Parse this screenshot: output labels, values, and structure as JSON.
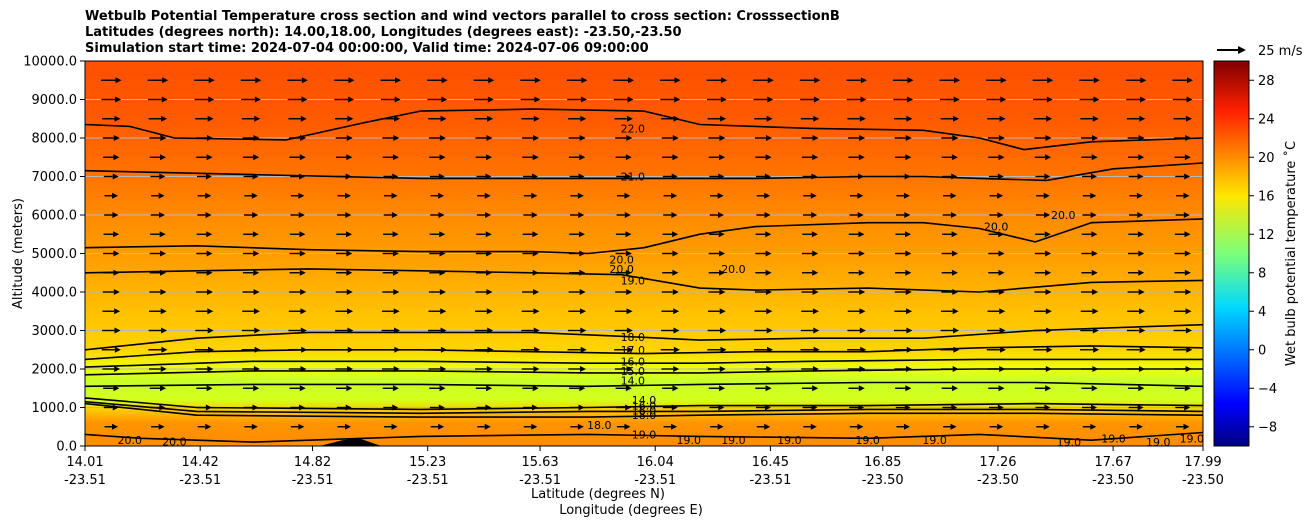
{
  "chart_data": {
    "type": "heatmap",
    "title_lines": [
      "Wetbulb Potential Temperature cross section and wind vectors parallel to cross section: CrosssectionB",
      "Latitudes (degrees north): 14.00,18.00, Longitudes (degrees east): -23.50,-23.50",
      "Simulation start time: 2024-07-04 00:00:00, Valid time: 2024-07-06 09:00:00"
    ],
    "xlabel_lines": [
      "Latitude (degrees N)",
      "Longitude (degrees E)"
    ],
    "ylabel": "Altitude (meters)",
    "ylim": [
      0,
      10000
    ],
    "y_ticks": [
      "0.0",
      "1000.0",
      "2000.0",
      "3000.0",
      "4000.0",
      "5000.0",
      "6000.0",
      "7000.0",
      "8000.0",
      "9000.0",
      "10000.0"
    ],
    "x_ticks_lat": [
      "14.01",
      "14.42",
      "14.82",
      "15.23",
      "15.63",
      "16.04",
      "16.45",
      "16.85",
      "17.26",
      "17.67",
      "17.99"
    ],
    "x_ticks_lon": [
      "-23.51",
      "-23.51",
      "-23.51",
      "-23.51",
      "-23.51",
      "-23.51",
      "-23.51",
      "-23.50",
      "-23.50",
      "-23.50",
      "-23.50"
    ],
    "colorbar": {
      "label": "Wet bulb potential temperature ˚C",
      "range": [
        -10,
        30
      ],
      "ticks": [
        "−8",
        "−4",
        "0",
        "4",
        "8",
        "12",
        "16",
        "20",
        "24",
        "28"
      ]
    },
    "quiver_key": {
      "label": "25 m/s"
    },
    "filled_field": [
      {
        "altitude": 0,
        "temperature": 19.5
      },
      {
        "altitude": 600,
        "temperature": 19.0
      },
      {
        "altitude": 900,
        "temperature": 16.0
      },
      {
        "altitude": 1200,
        "temperature": 14.2
      },
      {
        "altitude": 1700,
        "temperature": 14.0
      },
      {
        "altitude": 2000,
        "temperature": 15.5
      },
      {
        "altitude": 2500,
        "temperature": 17.5
      },
      {
        "altitude": 3500,
        "temperature": 18.5
      },
      {
        "altitude": 4700,
        "temperature": 19.5
      },
      {
        "altitude": 6000,
        "temperature": 20.3
      },
      {
        "altitude": 7000,
        "temperature": 21.0
      },
      {
        "altitude": 8500,
        "temperature": 22.5
      },
      {
        "altitude": 10000,
        "temperature": 23.0
      }
    ],
    "contours": [
      {
        "level": "22.0",
        "points": [
          [
            0,
            8350
          ],
          [
            0.04,
            8300
          ],
          [
            0.08,
            8000
          ],
          [
            0.18,
            7950
          ],
          [
            0.25,
            8400
          ],
          [
            0.3,
            8700
          ],
          [
            0.4,
            8750
          ],
          [
            0.5,
            8700
          ],
          [
            0.55,
            8350
          ],
          [
            0.65,
            8250
          ],
          [
            0.75,
            8200
          ],
          [
            0.8,
            8000
          ],
          [
            0.84,
            7700
          ],
          [
            0.9,
            7900
          ],
          [
            1,
            8000
          ]
        ]
      },
      {
        "level": "21.0",
        "points": [
          [
            0,
            7150
          ],
          [
            0.15,
            7050
          ],
          [
            0.3,
            6950
          ],
          [
            0.45,
            6950
          ],
          [
            0.55,
            6950
          ],
          [
            0.6,
            6950
          ],
          [
            0.7,
            7000
          ],
          [
            0.75,
            7000
          ],
          [
            0.8,
            6950
          ],
          [
            0.86,
            6900
          ],
          [
            0.92,
            7200
          ],
          [
            1,
            7350
          ]
        ]
      },
      {
        "level": "20.0",
        "points": [
          [
            0,
            5150
          ],
          [
            0.1,
            5200
          ],
          [
            0.2,
            5100
          ],
          [
            0.3,
            5050
          ],
          [
            0.4,
            5050
          ],
          [
            0.45,
            5000
          ],
          [
            0.5,
            5150
          ],
          [
            0.55,
            5500
          ],
          [
            0.6,
            5700
          ],
          [
            0.7,
            5800
          ],
          [
            0.75,
            5800
          ],
          [
            0.8,
            5650
          ],
          [
            0.85,
            5300
          ],
          [
            0.9,
            5800
          ],
          [
            1,
            5900
          ]
        ]
      },
      {
        "level": "19.0",
        "points": [
          [
            0,
            4500
          ],
          [
            0.1,
            4550
          ],
          [
            0.2,
            4600
          ],
          [
            0.3,
            4550
          ],
          [
            0.4,
            4500
          ],
          [
            0.48,
            4450
          ],
          [
            0.55,
            4100
          ],
          [
            0.6,
            4050
          ],
          [
            0.7,
            4100
          ],
          [
            0.8,
            4000
          ],
          [
            0.9,
            4250
          ],
          [
            1,
            4300
          ]
        ]
      },
      {
        "level": "18.0",
        "points": [
          [
            0,
            2500
          ],
          [
            0.1,
            2800
          ],
          [
            0.2,
            2950
          ],
          [
            0.3,
            2950
          ],
          [
            0.4,
            2950
          ],
          [
            0.48,
            2850
          ],
          [
            0.55,
            2750
          ],
          [
            0.65,
            2800
          ],
          [
            0.75,
            2800
          ],
          [
            0.85,
            3000
          ],
          [
            0.95,
            3100
          ],
          [
            1,
            3150
          ]
        ]
      },
      {
        "level": "17.0",
        "points": [
          [
            0,
            2250
          ],
          [
            0.1,
            2450
          ],
          [
            0.2,
            2500
          ],
          [
            0.3,
            2500
          ],
          [
            0.4,
            2450
          ],
          [
            0.5,
            2400
          ],
          [
            0.6,
            2450
          ],
          [
            0.7,
            2450
          ],
          [
            0.8,
            2550
          ],
          [
            0.9,
            2600
          ],
          [
            1,
            2550
          ]
        ]
      },
      {
        "level": "16.0",
        "points": [
          [
            0,
            2050
          ],
          [
            0.15,
            2200
          ],
          [
            0.3,
            2200
          ],
          [
            0.45,
            2150
          ],
          [
            0.55,
            2150
          ],
          [
            0.65,
            2200
          ],
          [
            0.8,
            2250
          ],
          [
            1,
            2250
          ]
        ]
      },
      {
        "level": "15.0",
        "points": [
          [
            0,
            1850
          ],
          [
            0.15,
            1950
          ],
          [
            0.3,
            1950
          ],
          [
            0.45,
            1900
          ],
          [
            0.55,
            1900
          ],
          [
            0.65,
            1950
          ],
          [
            0.8,
            2000
          ],
          [
            1,
            2000
          ]
        ]
      },
      {
        "level": "14.0",
        "points": [
          [
            0,
            1550
          ],
          [
            0.15,
            1600
          ],
          [
            0.3,
            1600
          ],
          [
            0.45,
            1550
          ],
          [
            0.55,
            1600
          ],
          [
            0.7,
            1650
          ],
          [
            0.85,
            1650
          ],
          [
            1,
            1550
          ]
        ]
      },
      {
        "level": "14.0",
        "points": [
          [
            0,
            1250
          ],
          [
            0.1,
            1000
          ],
          [
            0.3,
            950
          ],
          [
            0.45,
            1000
          ],
          [
            0.55,
            1050
          ],
          [
            0.7,
            1050
          ],
          [
            0.85,
            1100
          ],
          [
            1,
            1050
          ]
        ]
      },
      {
        "level": "16.0",
        "points": [
          [
            0,
            1150
          ],
          [
            0.1,
            900
          ],
          [
            0.3,
            850
          ],
          [
            0.45,
            900
          ],
          [
            0.55,
            900
          ],
          [
            0.7,
            950
          ],
          [
            0.85,
            950
          ],
          [
            1,
            900
          ]
        ]
      },
      {
        "level": "18.0",
        "points": [
          [
            0,
            1100
          ],
          [
            0.1,
            800
          ],
          [
            0.3,
            750
          ],
          [
            0.45,
            750
          ],
          [
            0.55,
            800
          ],
          [
            0.7,
            850
          ],
          [
            0.85,
            850
          ],
          [
            1,
            800
          ]
        ]
      },
      {
        "level": "19.0",
        "points": [
          [
            0,
            300
          ],
          [
            0.05,
            200
          ],
          [
            0.15,
            100
          ],
          [
            0.3,
            250
          ],
          [
            0.45,
            300
          ],
          [
            0.55,
            250
          ],
          [
            0.7,
            200
          ],
          [
            0.8,
            300
          ],
          [
            0.9,
            150
          ],
          [
            1,
            350
          ]
        ]
      }
    ],
    "contour_labels": [
      {
        "text": "22.0",
        "x": 0.49,
        "alt": 8250
      },
      {
        "text": "21.0",
        "x": 0.49,
        "alt": 7000
      },
      {
        "text": "20.0",
        "x": 0.48,
        "alt": 4850
      },
      {
        "text": "20.0",
        "x": 0.48,
        "alt": 4600
      },
      {
        "text": "19.0",
        "x": 0.49,
        "alt": 4300
      },
      {
        "text": "20.0",
        "x": 0.58,
        "alt": 4600
      },
      {
        "text": "20.0",
        "x": 0.815,
        "alt": 5700
      },
      {
        "text": "20.0",
        "x": 0.875,
        "alt": 6000
      },
      {
        "text": "18.0",
        "x": 0.49,
        "alt": 2830
      },
      {
        "text": "17.0",
        "x": 0.49,
        "alt": 2500
      },
      {
        "text": "16.0",
        "x": 0.49,
        "alt": 2200
      },
      {
        "text": "15.0",
        "x": 0.49,
        "alt": 1950
      },
      {
        "text": "14.0",
        "x": 0.49,
        "alt": 1700
      },
      {
        "text": "14.0",
        "x": 0.5,
        "alt": 1200
      },
      {
        "text": "16.0",
        "x": 0.5,
        "alt": 1050
      },
      {
        "text": "16.0",
        "x": 0.5,
        "alt": 920
      },
      {
        "text": "18.0",
        "x": 0.5,
        "alt": 800
      },
      {
        "text": "18.0",
        "x": 0.46,
        "alt": 550
      },
      {
        "text": "19.0",
        "x": 0.5,
        "alt": 300
      },
      {
        "text": "20.0",
        "x": 0.04,
        "alt": 150
      },
      {
        "text": "20.0",
        "x": 0.08,
        "alt": 120
      },
      {
        "text": "19.0",
        "x": 0.54,
        "alt": 150
      },
      {
        "text": "19.0",
        "x": 0.58,
        "alt": 150
      },
      {
        "text": "19.0",
        "x": 0.63,
        "alt": 150
      },
      {
        "text": "19.0",
        "x": 0.7,
        "alt": 150
      },
      {
        "text": "19.0",
        "x": 0.76,
        "alt": 150
      },
      {
        "text": "19.0",
        "x": 0.88,
        "alt": 100
      },
      {
        "text": "19.0",
        "x": 0.92,
        "alt": 200
      },
      {
        "text": "19.0",
        "x": 0.96,
        "alt": 100
      },
      {
        "text": "19.0",
        "x": 0.99,
        "alt": 200
      }
    ],
    "terrain": [
      [
        0.21,
        0
      ],
      [
        0.23,
        150
      ],
      [
        0.245,
        200
      ],
      [
        0.265,
        0
      ]
    ],
    "wind_vectors": {
      "columns": 24,
      "levels": [
        0,
        500,
        1000,
        1500,
        2000,
        2500,
        3000,
        3500,
        4000,
        4500,
        5000,
        5500,
        6000,
        6500,
        7000,
        7500,
        8000,
        8500,
        9000,
        9500
      ],
      "speed_by_level": [
        3,
        5,
        7,
        9,
        11,
        13,
        12,
        11,
        10,
        9,
        9,
        8,
        6,
        5,
        7,
        9,
        10,
        12,
        14,
        15
      ]
    }
  }
}
